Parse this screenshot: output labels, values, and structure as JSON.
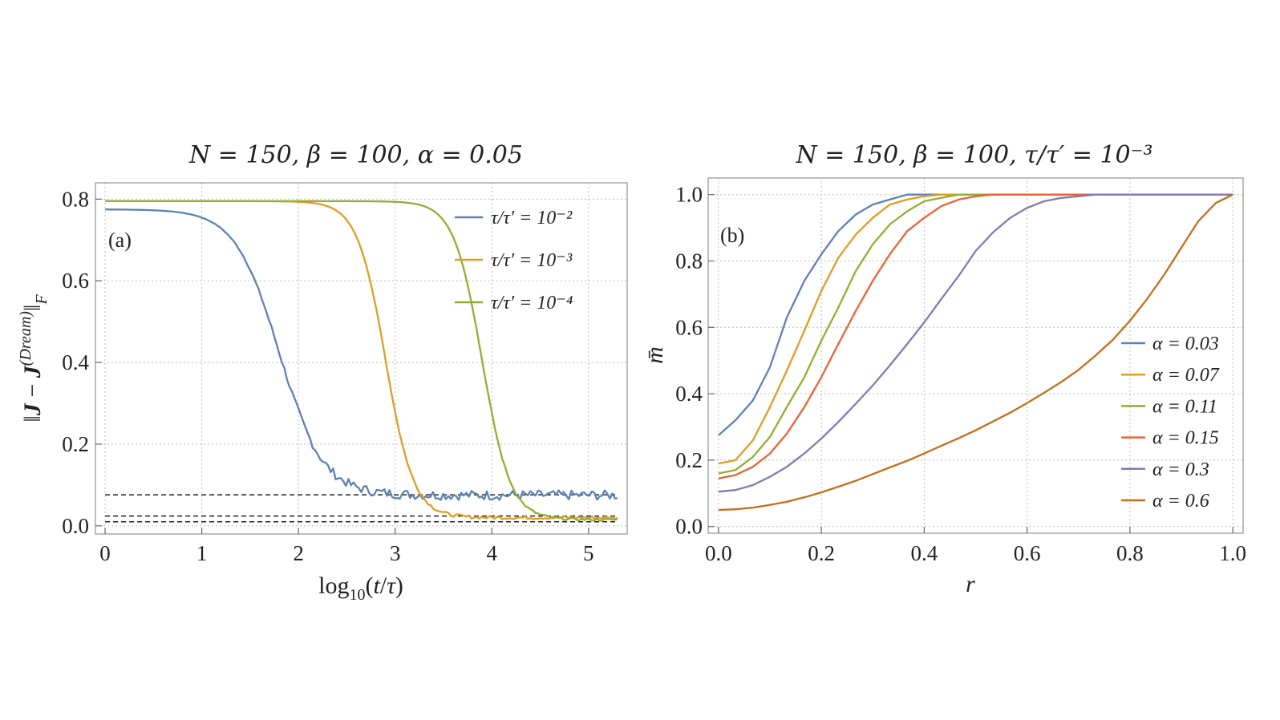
{
  "chart_data": [
    {
      "type": "line",
      "panel_label": "(a)",
      "title": "N = 150, β = 100,  α = 0.05",
      "xlabel": "log10(t/τ)",
      "ylabel": "‖J − J(Dream)‖F",
      "xlim": [
        -0.1,
        5.4
      ],
      "ylim": [
        -0.02,
        0.84
      ],
      "xticks": [
        0,
        1,
        2,
        3,
        4,
        5
      ],
      "yticks": [
        0.0,
        0.2,
        0.4,
        0.6,
        0.8
      ],
      "ytick_labels": [
        "0.0",
        "0.2",
        "0.4",
        "0.6",
        "0.8"
      ],
      "grid": true,
      "legend_position": "top-right",
      "x_max": 5.3,
      "series": [
        {
          "name": "τ/τ′ = 10⁻²",
          "color": "#5e81b5",
          "start": 0.775,
          "center": 1.8,
          "width": 0.5,
          "floor": 0.075,
          "noise": 0.012
        },
        {
          "name": "τ/τ′ = 10⁻³",
          "color": "#e19c24",
          "start": 0.795,
          "center": 2.9,
          "width": 0.32,
          "floor": 0.02,
          "noise": 0.004
        },
        {
          "name": "τ/τ′ = 10⁻⁴",
          "color": "#8fb032",
          "start": 0.795,
          "center": 3.9,
          "width": 0.32,
          "floor": 0.015,
          "noise": 0.003
        }
      ],
      "reference_lines": [
        0.076,
        0.024,
        0.01
      ]
    },
    {
      "type": "line",
      "panel_label": "(b)",
      "title": "N = 150,  β = 100,  τ/τ′ = 10⁻³",
      "xlabel": "r",
      "ylabel": "m̄",
      "xlim": [
        -0.02,
        1.02
      ],
      "ylim": [
        -0.02,
        1.05
      ],
      "xticks": [
        0.0,
        0.2,
        0.4,
        0.6,
        0.8,
        1.0
      ],
      "xtick_labels": [
        "0.0",
        "0.2",
        "0.4",
        "0.6",
        "0.8",
        "1.0"
      ],
      "yticks": [
        0.0,
        0.2,
        0.4,
        0.6,
        0.8,
        1.0
      ],
      "ytick_labels": [
        "0.0",
        "0.2",
        "0.4",
        "0.6",
        "0.8",
        "1.0"
      ],
      "grid": true,
      "legend_position": "bottom-right",
      "x": [
        0,
        0.033,
        0.067,
        0.1,
        0.133,
        0.167,
        0.2,
        0.233,
        0.267,
        0.3,
        0.333,
        0.367,
        0.4,
        0.433,
        0.467,
        0.5,
        0.533,
        0.567,
        0.6,
        0.633,
        0.667,
        0.7,
        0.733,
        0.767,
        0.8,
        0.833,
        0.867,
        0.9,
        0.933,
        0.967,
        1.0
      ],
      "series": [
        {
          "name": "α = 0.03",
          "color": "#5e81b5",
          "values": [
            0.275,
            0.32,
            0.38,
            0.48,
            0.63,
            0.74,
            0.82,
            0.89,
            0.94,
            0.97,
            0.985,
            1.0,
            1.0,
            1.0,
            1.0,
            1.0,
            1.0,
            1.0,
            1.0,
            1.0,
            1.0,
            1.0,
            1.0,
            1.0,
            1.0,
            1.0,
            1.0,
            1.0,
            1.0,
            1.0,
            1.0
          ]
        },
        {
          "name": "α = 0.07",
          "color": "#e19c24",
          "values": [
            0.19,
            0.2,
            0.26,
            0.36,
            0.47,
            0.59,
            0.71,
            0.81,
            0.88,
            0.93,
            0.97,
            0.985,
            0.995,
            1.0,
            1.0,
            1.0,
            1.0,
            1.0,
            1.0,
            1.0,
            1.0,
            1.0,
            1.0,
            1.0,
            1.0,
            1.0,
            1.0,
            1.0,
            1.0,
            1.0,
            1.0
          ]
        },
        {
          "name": "α = 0.11",
          "color": "#8fb032",
          "values": [
            0.16,
            0.17,
            0.21,
            0.27,
            0.36,
            0.45,
            0.56,
            0.66,
            0.77,
            0.85,
            0.91,
            0.95,
            0.98,
            0.99,
            1.0,
            1.0,
            1.0,
            1.0,
            1.0,
            1.0,
            1.0,
            1.0,
            1.0,
            1.0,
            1.0,
            1.0,
            1.0,
            1.0,
            1.0,
            1.0,
            1.0
          ]
        },
        {
          "name": "α = 0.15",
          "color": "#eb6235",
          "values": [
            0.145,
            0.155,
            0.18,
            0.22,
            0.28,
            0.36,
            0.45,
            0.55,
            0.65,
            0.74,
            0.82,
            0.89,
            0.93,
            0.965,
            0.985,
            0.995,
            1.0,
            1.0,
            1.0,
            1.0,
            1.0,
            1.0,
            1.0,
            1.0,
            1.0,
            1.0,
            1.0,
            1.0,
            1.0,
            1.0,
            1.0
          ]
        },
        {
          "name": "α = 0.3",
          "color": "#8778b3",
          "values": [
            0.105,
            0.11,
            0.125,
            0.15,
            0.18,
            0.22,
            0.265,
            0.315,
            0.37,
            0.425,
            0.485,
            0.55,
            0.615,
            0.685,
            0.755,
            0.83,
            0.885,
            0.93,
            0.96,
            0.98,
            0.99,
            0.995,
            1.0,
            1.0,
            1.0,
            1.0,
            1.0,
            1.0,
            1.0,
            1.0,
            1.0
          ]
        },
        {
          "name": "α = 0.6",
          "color": "#c56e1a",
          "values": [
            0.05,
            0.052,
            0.057,
            0.065,
            0.075,
            0.088,
            0.103,
            0.12,
            0.138,
            0.158,
            0.178,
            0.198,
            0.22,
            0.243,
            0.266,
            0.29,
            0.316,
            0.343,
            0.372,
            0.403,
            0.436,
            0.472,
            0.515,
            0.563,
            0.62,
            0.685,
            0.76,
            0.84,
            0.92,
            0.975,
            1.0
          ]
        }
      ]
    }
  ]
}
